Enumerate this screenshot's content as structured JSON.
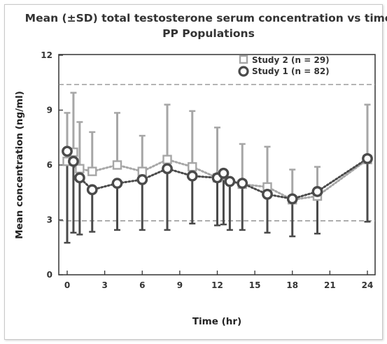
{
  "chart_data": {
    "type": "line",
    "title": "Mean (±SD) total testosterone serum concentration vs time",
    "subtitle": "PP Populations",
    "xlabel": "Time (hr)",
    "ylabel": "Mean concentration (ng/ml)",
    "xlim": [
      0,
      24
    ],
    "ylim": [
      0,
      12
    ],
    "x_ticks": [
      "0",
      "3",
      "6",
      "9",
      "12",
      "15",
      "18",
      "21",
      "24"
    ],
    "y_ticks": [
      "0",
      "3",
      "6",
      "9",
      "12"
    ],
    "reference_lines": [
      10.4,
      2.95
    ],
    "grid": false,
    "legend_position": "top-right",
    "series": [
      {
        "name": "Study 2 (n = 29)",
        "marker": "square",
        "color": "#a6a6a6",
        "points": [
          {
            "x": 0,
            "y": 6.2,
            "sd_upper": 8.85
          },
          {
            "x": 0.5,
            "y": 6.7,
            "sd_upper": 9.95
          },
          {
            "x": 1,
            "y": 5.8,
            "sd_upper": 8.35
          },
          {
            "x": 2,
            "y": 5.65,
            "sd_upper": 7.8
          },
          {
            "x": 4,
            "y": 6.0,
            "sd_upper": 8.85
          },
          {
            "x": 6,
            "y": 5.65,
            "sd_upper": 7.6
          },
          {
            "x": 8,
            "y": 6.3,
            "sd_upper": 9.3
          },
          {
            "x": 10,
            "y": 5.9,
            "sd_upper": 8.95
          },
          {
            "x": 12,
            "y": 5.3,
            "sd_upper": 8.05
          },
          {
            "x": 14,
            "y": 4.95,
            "sd_upper": 7.15
          },
          {
            "x": 16,
            "y": 4.8,
            "sd_upper": 7.0
          },
          {
            "x": 18,
            "y": 4.1,
            "sd_upper": 5.75
          },
          {
            "x": 20,
            "y": 4.3,
            "sd_upper": 5.9
          },
          {
            "x": 24,
            "y": 6.3,
            "sd_upper": 9.3
          }
        ]
      },
      {
        "name": "Study 1 (n = 82)",
        "marker": "circle",
        "color": "#4a4a4a",
        "points": [
          {
            "x": 0,
            "y": 6.75,
            "sd_lower": 1.75
          },
          {
            "x": 0.5,
            "y": 6.2,
            "sd_lower": 2.3
          },
          {
            "x": 1,
            "y": 5.3,
            "sd_lower": 2.2
          },
          {
            "x": 2,
            "y": 4.65,
            "sd_lower": 2.35
          },
          {
            "x": 4,
            "y": 5.0,
            "sd_lower": 2.45
          },
          {
            "x": 6,
            "y": 5.2,
            "sd_lower": 2.45
          },
          {
            "x": 8,
            "y": 5.8,
            "sd_lower": 2.45
          },
          {
            "x": 10,
            "y": 5.4,
            "sd_lower": 2.8
          },
          {
            "x": 12,
            "y": 5.3,
            "sd_lower": 2.7
          },
          {
            "x": 12.5,
            "y": 5.55,
            "sd_lower": 2.75
          },
          {
            "x": 13,
            "y": 5.1,
            "sd_lower": 2.45
          },
          {
            "x": 14,
            "y": 5.0,
            "sd_lower": 2.45
          },
          {
            "x": 16,
            "y": 4.4,
            "sd_lower": 2.3
          },
          {
            "x": 18,
            "y": 4.15,
            "sd_lower": 2.1
          },
          {
            "x": 20,
            "y": 4.55,
            "sd_lower": 2.25
          },
          {
            "x": 24,
            "y": 6.35,
            "sd_lower": 2.9
          }
        ]
      }
    ]
  }
}
